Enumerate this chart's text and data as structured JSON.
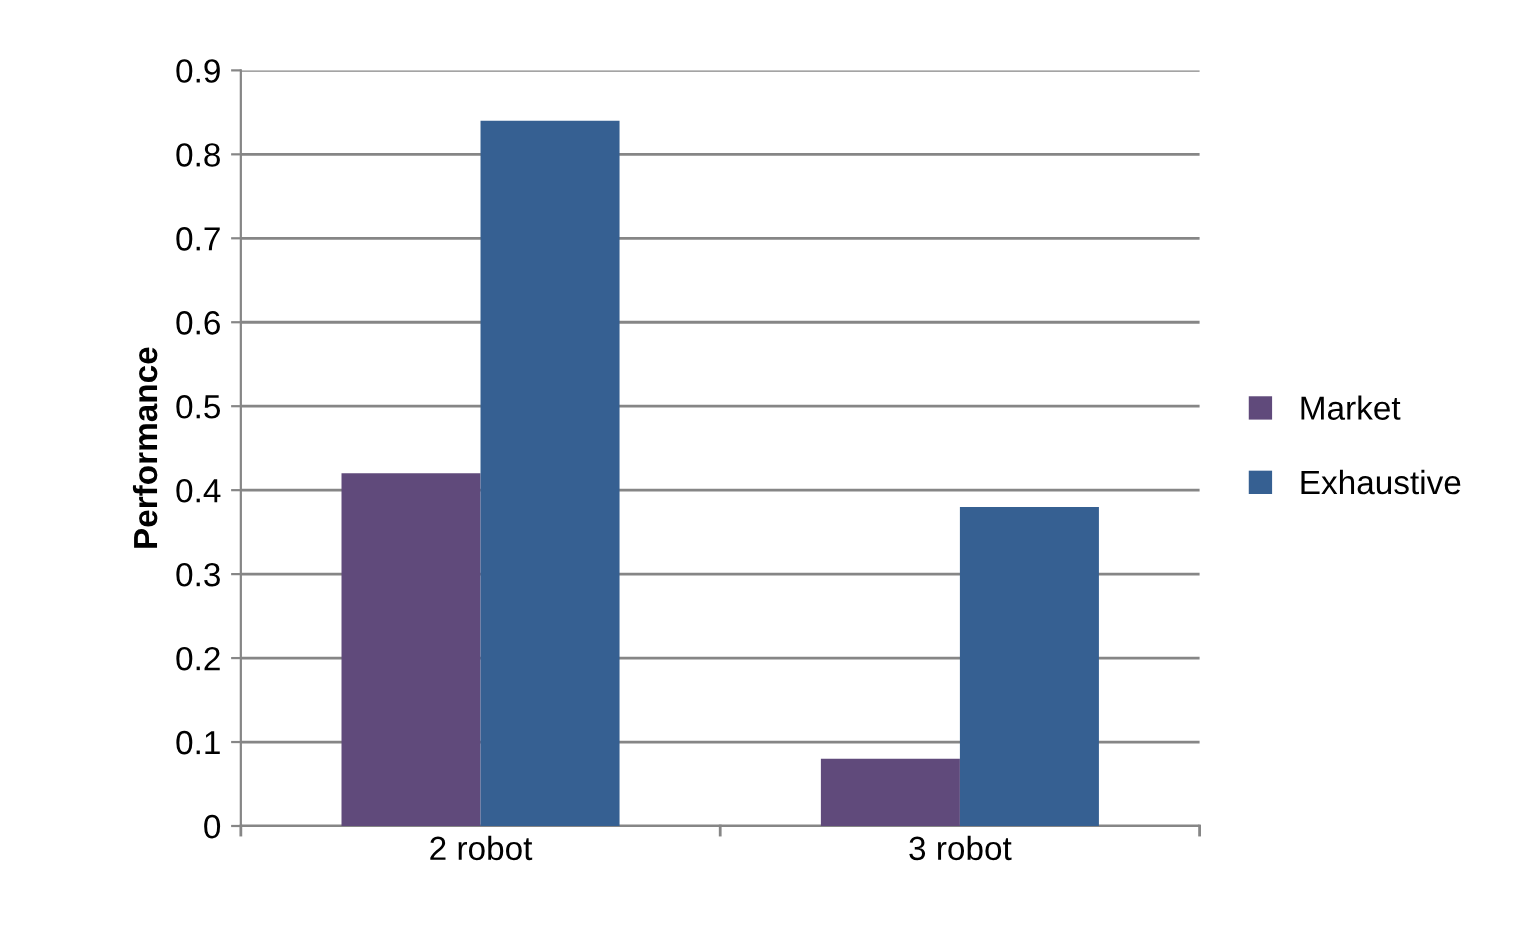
{
  "chart_data": {
    "type": "bar",
    "ylabel": "Performance",
    "categories": [
      "2 robot",
      "3 robot"
    ],
    "series": [
      {
        "name": "Market",
        "color": "#604a7b",
        "values": [
          0.42,
          0.08
        ]
      },
      {
        "name": "Exhaustive",
        "color": "#366092",
        "values": [
          0.84,
          0.38
        ]
      }
    ],
    "ylim": [
      0,
      0.9
    ],
    "yticks": [
      {
        "value": 0,
        "label": "0"
      },
      0.1,
      0.2,
      0.3,
      0.4,
      0.5,
      0.6,
      0.7,
      0.8,
      0.9
    ],
    "grid": "y",
    "legend": "right"
  }
}
